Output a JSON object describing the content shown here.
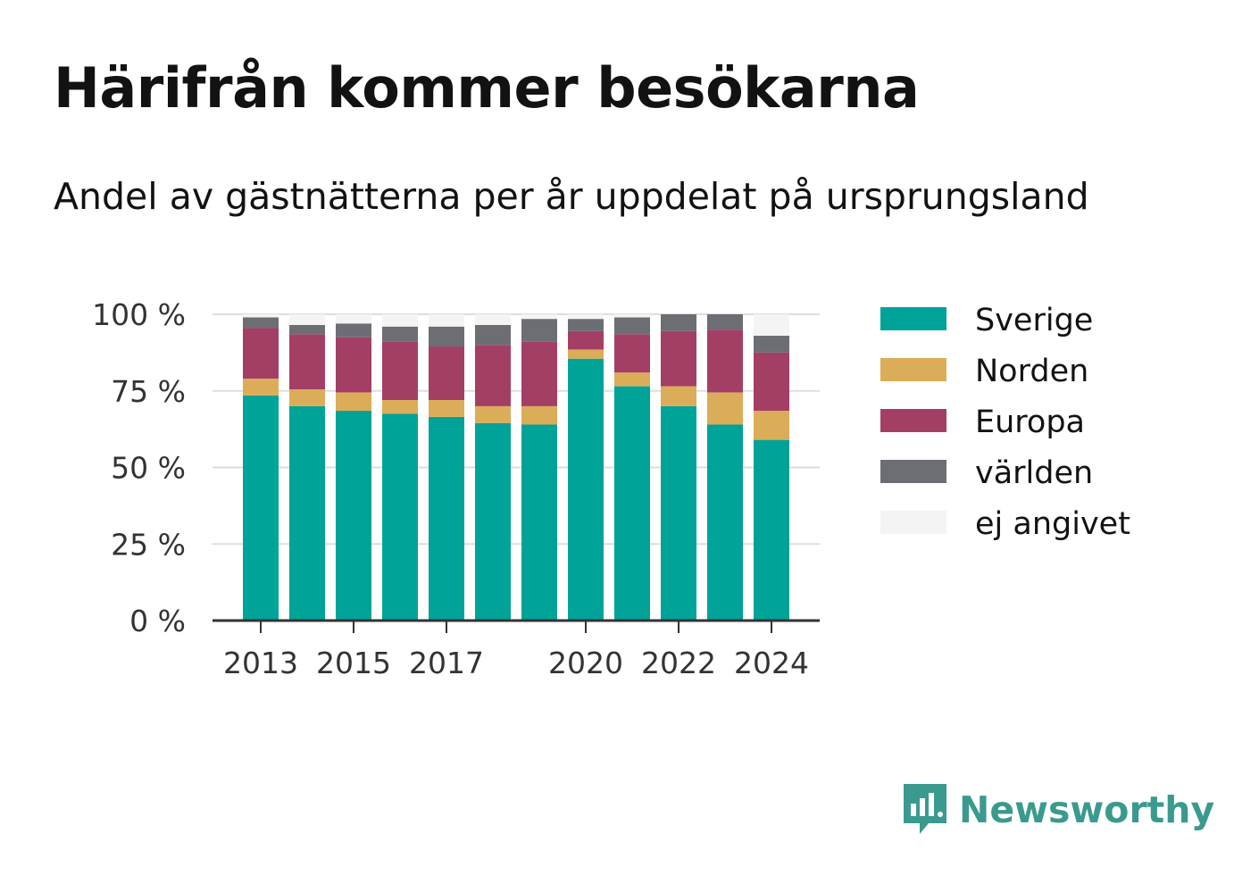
{
  "title": "Härifrån kommer besökarna",
  "subtitle": "Andel av gästnätterna per år uppdelat på ursprungsland",
  "brand": {
    "name": "Newsworthy",
    "icon": "newsworthy-logo-icon",
    "color": "#3a9a8e"
  },
  "chart_data": {
    "type": "bar",
    "stacked": true,
    "categories": [
      "2013",
      "2014",
      "2015",
      "2016",
      "2017",
      "2018",
      "2019",
      "2020",
      "2021",
      "2022",
      "2023",
      "2024"
    ],
    "x_tick_labels": [
      "2013",
      "2015",
      "2017",
      "2020",
      "2022",
      "2024"
    ],
    "y_tick_labels": [
      "0 %",
      "25 %",
      "50 %",
      "75 %",
      "100 %"
    ],
    "ylim": [
      0,
      100
    ],
    "grid": true,
    "legend_position": "right",
    "series": [
      {
        "name": "Sverige",
        "color": "#00a398",
        "values": [
          73.5,
          70,
          68.5,
          67.5,
          66.5,
          64.5,
          64,
          85.5,
          76.5,
          70,
          64,
          59
        ]
      },
      {
        "name": "Norden",
        "color": "#dbad58",
        "values": [
          5.5,
          5.5,
          6,
          4.5,
          5.5,
          5.5,
          6,
          3,
          4.5,
          6.5,
          10.5,
          9.5
        ]
      },
      {
        "name": "Europa",
        "color": "#a33f65",
        "values": [
          16.5,
          18,
          18,
          19,
          17.5,
          20,
          21,
          6,
          12.5,
          18,
          20.5,
          19
        ]
      },
      {
        "name": "världen",
        "color": "#6d6d74",
        "values": [
          3.5,
          3,
          4.5,
          5,
          6.5,
          6.5,
          7.5,
          4,
          5.5,
          5.5,
          5,
          5.5
        ]
      },
      {
        "name": "ej angivet",
        "color": "#f5f4f4",
        "values": [
          1,
          3.5,
          3,
          4,
          4,
          3.5,
          1.5,
          1.5,
          1,
          0,
          0,
          7
        ]
      }
    ]
  }
}
